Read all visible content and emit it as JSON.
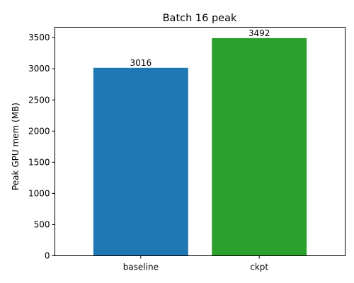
{
  "chart_data": {
    "type": "bar",
    "title": "Batch 16 peak",
    "xlabel": "",
    "ylabel": "Peak GPU mem (MB)",
    "categories": [
      "baseline",
      "ckpt"
    ],
    "values": [
      3016,
      3492
    ],
    "data_labels": [
      "3016",
      "3492"
    ],
    "colors": [
      "#1f77b4",
      "#2ca02c"
    ],
    "ylim": [
      0,
      3666.6
    ],
    "yticks": [
      0,
      500,
      1000,
      1500,
      2000,
      2500,
      3000,
      3500
    ],
    "ytick_labels": [
      "0",
      "500",
      "1000",
      "1500",
      "2000",
      "2500",
      "3000",
      "3500"
    ],
    "grid": false,
    "legend": "none"
  }
}
